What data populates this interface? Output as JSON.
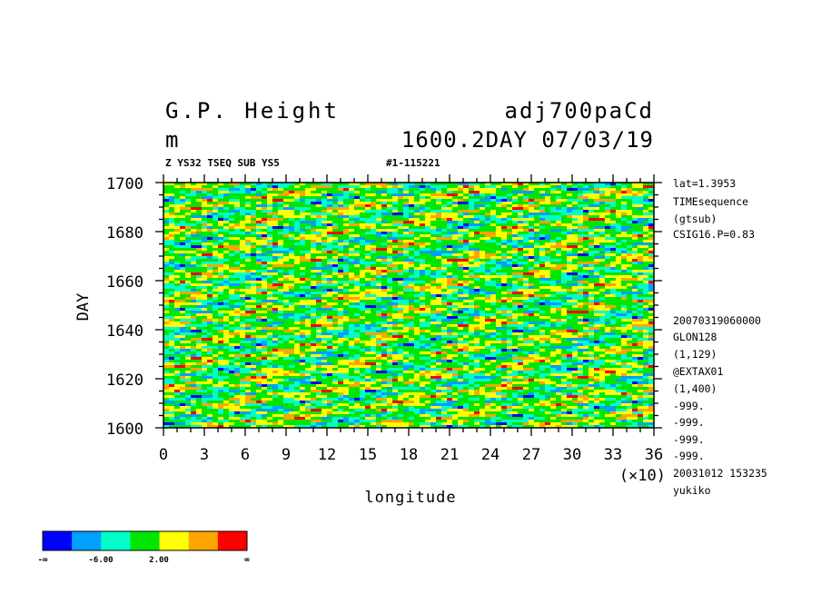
{
  "header": {
    "title_left": "G.P. Height",
    "title_right": "adj700paCd",
    "units": "m",
    "time_info": "1600.2DAY 07/03/19",
    "subtitle_left": "Z YS32 TSEQ SUB YS5",
    "subtitle_right": "#1-115221"
  },
  "side_info": {
    "top": [
      "lat=1.3953",
      "TIMEsequence",
      "(gtsub)",
      "CSIG16.P=0.83"
    ],
    "bottom": [
      "20070319060000",
      "GLON128",
      "(1,129)",
      "@EXTAX01",
      "(1,400)",
      "-999.",
      "-999.",
      "-999.",
      "-999.",
      "20031012 153235",
      "yukiko"
    ]
  },
  "chart_data": {
    "type": "heatmap",
    "xlabel": "longitude",
    "ylabel": "DAY",
    "x_multiplier_label": "(×10)",
    "xlim": [
      0,
      36
    ],
    "ylim": [
      1600,
      1700
    ],
    "x_ticks": [
      "0",
      "3",
      "6",
      "9",
      "12",
      "15",
      "18",
      "21",
      "24",
      "27",
      "30",
      "33",
      "36"
    ],
    "y_ticks": [
      "1600",
      "1620",
      "1640",
      "1660",
      "1680",
      "1700"
    ],
    "colorbar": {
      "colors": [
        "#0000ff",
        "#00a0ff",
        "#00ffc8",
        "#00e600",
        "#ffff00",
        "#ffa500",
        "#ff0000"
      ],
      "labels": [
        "-∞",
        "-6.00",
        "2.00",
        "∞"
      ]
    }
  }
}
